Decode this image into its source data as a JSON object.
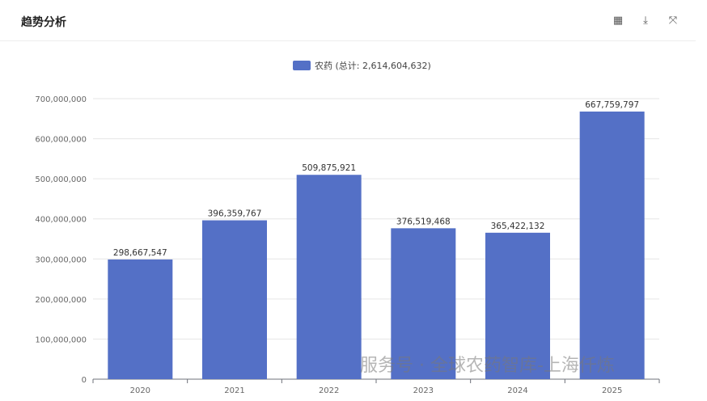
{
  "header": {
    "title": "趋势分析",
    "tools": [
      {
        "name": "table-icon",
        "glyph": "▦"
      },
      {
        "name": "download-icon",
        "glyph": "⤓"
      },
      {
        "name": "fullscreen-icon",
        "glyph": "⤧"
      }
    ]
  },
  "watermark": "服务号 · 全球农药智库-上海仟炼",
  "chart_data": {
    "type": "bar",
    "categories": [
      "2020",
      "2021",
      "2022",
      "2023",
      "2024",
      "2025"
    ],
    "series": [
      {
        "name": "农药 (总计: 2,614,604,632)",
        "values": [
          298667547,
          396359767,
          509875921,
          376519468,
          365422132,
          667759797
        ],
        "color": "#5470c6"
      }
    ],
    "data_labels": [
      "298,667,547",
      "396,359,767",
      "509,875,921",
      "376,519,468",
      "365,422,132",
      "667,759,797"
    ],
    "ylim": [
      0,
      700000000
    ],
    "yticks": [
      "0",
      "100,000,000",
      "200,000,000",
      "300,000,000",
      "400,000,000",
      "500,000,000",
      "600,000,000",
      "700,000,000"
    ],
    "grid": true,
    "legend": "top"
  }
}
